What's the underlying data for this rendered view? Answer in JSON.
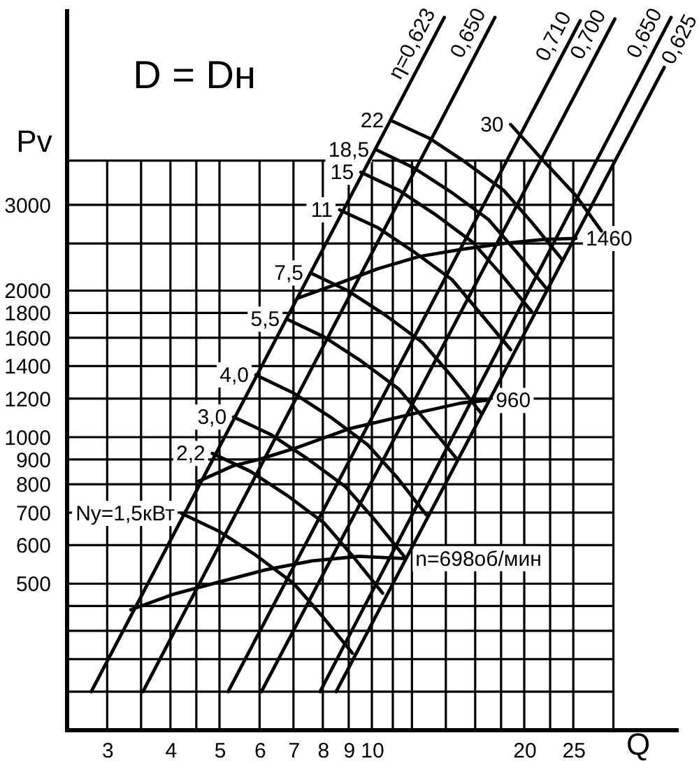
{
  "chart_data": {
    "type": "line",
    "title": "D = Dн",
    "xlabel": "Q",
    "ylabel": "Pv",
    "log": "xy",
    "xlim": [
      2.5,
      40
    ],
    "ylim": [
      250,
      7500
    ],
    "xticks": [
      3,
      {
        "value": 3.5,
        "label": null
      },
      4,
      {
        "value": 4.5,
        "label": null
      },
      5,
      6,
      7,
      8,
      9,
      10,
      {
        "value": 11,
        "label": null
      },
      {
        "value": 12,
        "label": null
      },
      {
        "value": 14,
        "label": null
      },
      {
        "value": 16,
        "label": null
      },
      {
        "value": 18,
        "label": null
      },
      20,
      {
        "value": 22.5,
        "label": null
      },
      25,
      {
        "value": 30,
        "label": null
      }
    ],
    "yticks": [
      {
        "value": 300,
        "label": null
      },
      {
        "value": 350,
        "label": null
      },
      {
        "value": 400,
        "label": null
      },
      {
        "value": 450,
        "label": null
      },
      500,
      600,
      700,
      800,
      900,
      1000,
      1200,
      1400,
      1600,
      1800,
      2000,
      {
        "value": 2500,
        "label": null
      },
      3000,
      {
        "value": 3700,
        "label": null
      }
    ],
    "grid": true,
    "series": [
      {
        "name": "n=698об/мин",
        "color": "#000000",
        "x": [
          3.34,
          4.04,
          4.99,
          6.17,
          7.62,
          9.43,
          11.66
        ],
        "values": [
          442,
          475,
          504,
          534,
          557,
          569,
          563
        ]
      },
      {
        "name": "960",
        "color": "#000000",
        "x": [
          4.55,
          5.32,
          6.05,
          7.14,
          9.0,
          12.2,
          15.0,
          16.8
        ],
        "values": [
          812,
          873,
          903,
          953,
          1040,
          1120,
          1175,
          1190
        ]
      },
      {
        "name": "1460",
        "color": "#000000",
        "x": [
          7.14,
          8.5,
          10.3,
          12.4,
          15.0,
          18.2,
          22.0,
          25.3
        ],
        "values": [
          1930,
          2060,
          2220,
          2350,
          2430,
          2500,
          2550,
          2560
        ]
      },
      {
        "name": "Nу=1,5кВт",
        "color": "#000000",
        "x": [
          4.21,
          5.0,
          5.9,
          7.0,
          7.96,
          9.15
        ],
        "values": [
          697,
          640,
          572,
          501,
          430,
          360
        ]
      },
      {
        "name": "2,2",
        "color": "#000000",
        "x": [
          4.84,
          5.75,
          6.79,
          8.05,
          9.15,
          10.5
        ],
        "values": [
          926,
          851,
          760,
          666,
          571,
          478
        ]
      },
      {
        "name": "3,0",
        "color": "#000000",
        "x": [
          5.33,
          6.33,
          7.46,
          8.87,
          10.1,
          11.6
        ],
        "values": [
          1100,
          1011,
          903,
          791,
          679,
          568
        ]
      },
      {
        "name": "4,0",
        "color": "#000000",
        "x": [
          5.9,
          7.0,
          8.27,
          9.82,
          11.2,
          12.8
        ],
        "values": [
          1342,
          1232,
          1101,
          964,
          828,
          693
        ]
      },
      {
        "name": "5,5",
        "color": "#000000",
        "x": [
          6.79,
          8.06,
          9.51,
          11.3,
          12.8,
          14.7
        ],
        "values": [
          1748,
          1605,
          1435,
          1256,
          1078,
          903
        ]
      },
      {
        "name": "7,5",
        "color": "#000000",
        "x": [
          7.56,
          8.98,
          10.6,
          12.6,
          14.3,
          16.4
        ],
        "values": [
          2175,
          1997,
          1785,
          1564,
          1342,
          1124
        ]
      },
      {
        "name": "11",
        "color": "#000000",
        "x": [
          8.64,
          10.3,
          12.1,
          14.4,
          16.3,
          18.8
        ],
        "values": [
          2930,
          2690,
          2404,
          2106,
          1807,
          1513
        ]
      },
      {
        "name": "15",
        "color": "#000000",
        "x": [
          9.51,
          11.3,
          13.3,
          15.8,
          18.0,
          20.7
        ],
        "values": [
          3502,
          3215,
          2874,
          2517,
          2160,
          1809
        ]
      },
      {
        "name": "18,5",
        "color": "#000000",
        "x": [
          10.2,
          12.1,
          14.3,
          17.0,
          19.3,
          22.2
        ],
        "values": [
          3893,
          3575,
          3195,
          2799,
          2402,
          2011
        ]
      },
      {
        "name": "22",
        "color": "#000000",
        "x": [
          10.9,
          13.0,
          15.3,
          18.2,
          20.7,
          23.8
        ],
        "values": [
          4475,
          4109,
          3672,
          3216,
          2761,
          2311
        ]
      },
      {
        "name": "30",
        "color": "#000000",
        "x": [
          18.8,
          21.6,
          25.3,
          28.4
        ],
        "values": [
          4388,
          3740,
          3135,
          2653
        ]
      },
      {
        "name": "η=0,623",
        "color": "#000000",
        "x": [
          2.79,
          13.9
        ],
        "values": [
          300,
          7280
        ]
      },
      {
        "name": "0,650",
        "color": "#000000",
        "x": [
          3.53,
          17.5
        ],
        "values": [
          300,
          7280
        ]
      },
      {
        "name": "0,710",
        "color": "#000000",
        "x": [
          5.2,
          25.8
        ],
        "values": [
          300,
          7170
        ]
      },
      {
        "name": "0,700",
        "color": "#000000",
        "x": [
          6.05,
          30.2
        ],
        "values": [
          300,
          7230
        ]
      },
      {
        "name": "0,650",
        "color": "#000000",
        "x": [
          7.9,
          39.0
        ],
        "values": [
          300,
          7280
        ]
      },
      {
        "name": "0,625",
        "color": "#000000",
        "x": [
          8.5,
          37.8
        ],
        "values": [
          300,
          5750
        ]
      }
    ]
  }
}
